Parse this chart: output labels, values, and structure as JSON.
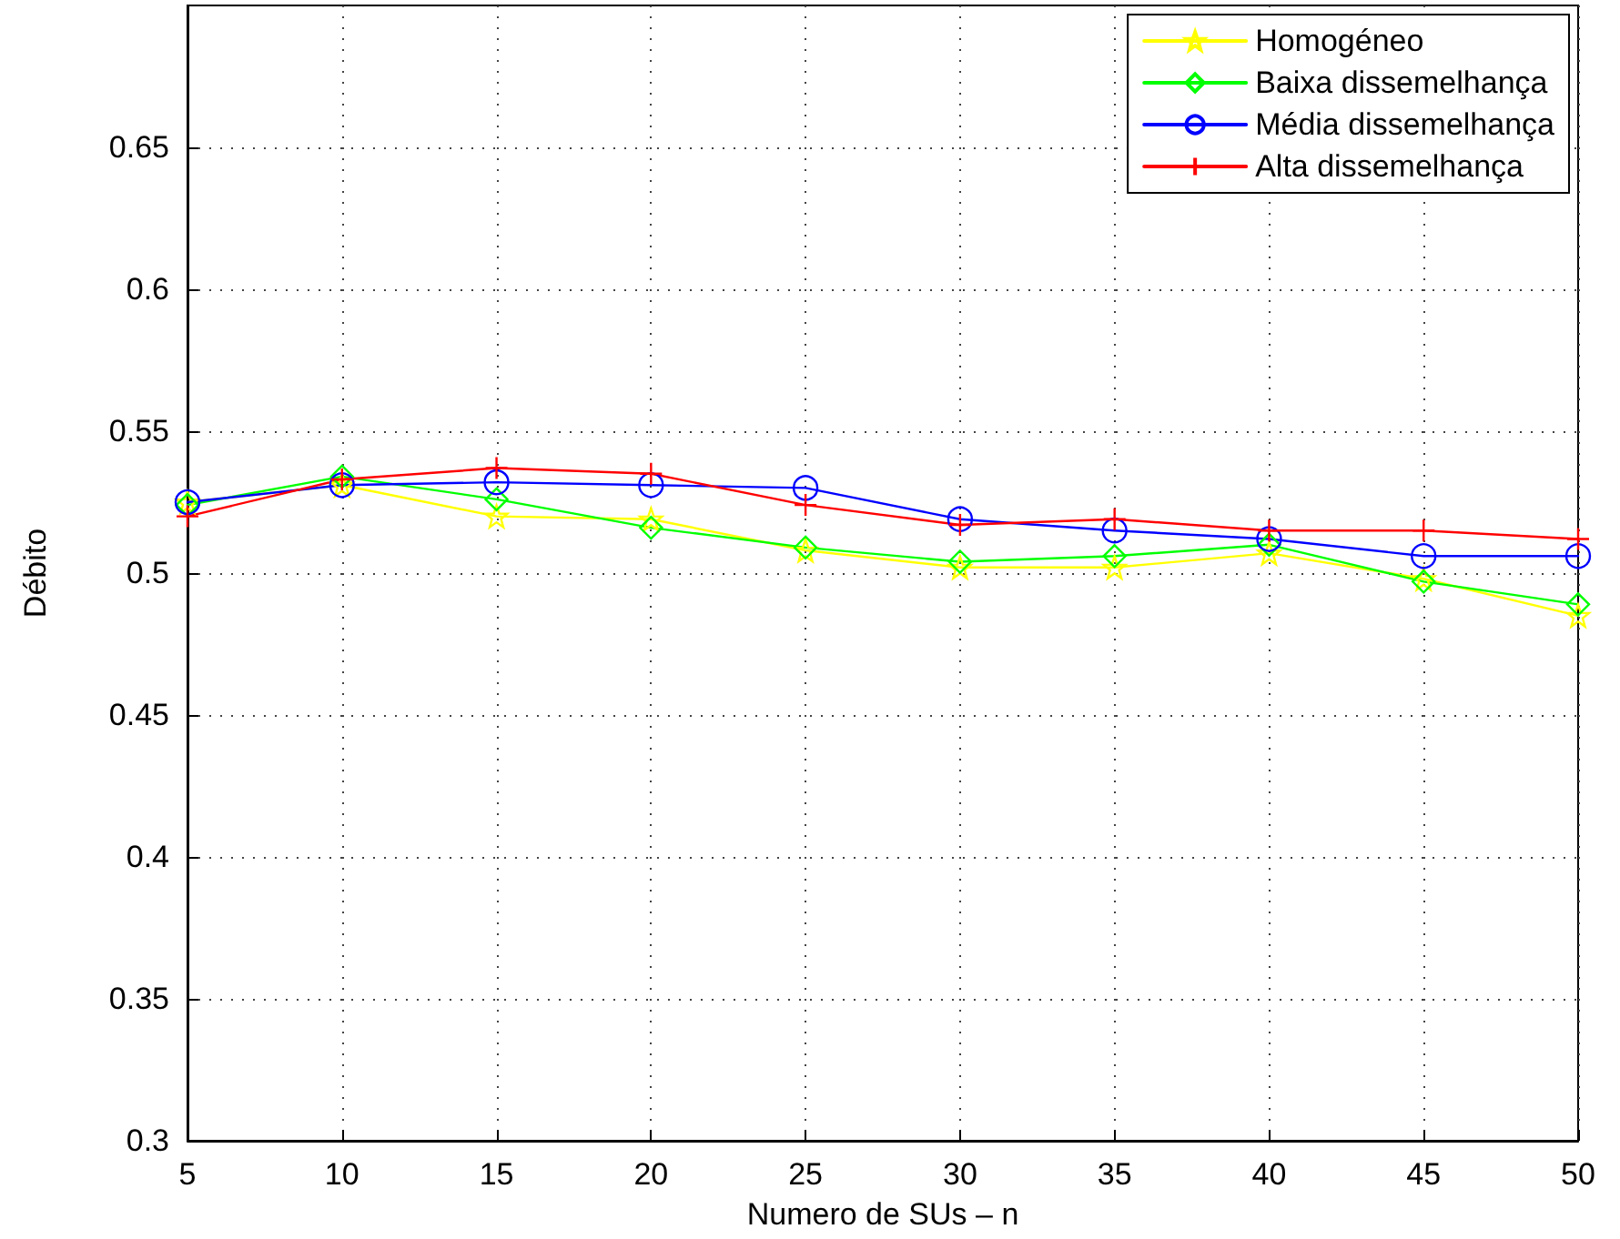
{
  "chart_data": {
    "type": "line",
    "xlabel": "Numero de SUs – n",
    "ylabel": "Débito",
    "x": [
      5,
      10,
      15,
      20,
      25,
      30,
      35,
      40,
      45,
      50
    ],
    "xlim": [
      5,
      50
    ],
    "xticks": [
      5,
      10,
      15,
      20,
      25,
      30,
      35,
      40,
      45,
      50
    ],
    "ylim": [
      0.3,
      0.7
    ],
    "yticks": [
      0.3,
      0.35,
      0.4,
      0.45,
      0.5,
      0.55,
      0.6,
      0.65
    ],
    "grid": true,
    "legend": "top right",
    "line_style": "solid",
    "series": [
      {
        "name": "Homogéneo",
        "color": "#ffff00",
        "marker": "star",
        "values": [
          0.525,
          0.531,
          0.52,
          0.519,
          0.508,
          0.502,
          0.502,
          0.507,
          0.498,
          0.485
        ]
      },
      {
        "name": "Baixa dissemelhança",
        "color": "#00ff00",
        "marker": "diamond",
        "values": [
          0.524,
          0.534,
          0.526,
          0.516,
          0.509,
          0.504,
          0.506,
          0.51,
          0.497,
          0.489
        ]
      },
      {
        "name": "Média dissemelhança",
        "color": "#0000ff",
        "marker": "circle",
        "values": [
          0.525,
          0.531,
          0.532,
          0.531,
          0.53,
          0.519,
          0.515,
          0.512,
          0.506,
          0.506
        ]
      },
      {
        "name": "Alta dissemelhança",
        "color": "#ff0000",
        "marker": "cross",
        "values": [
          0.52,
          0.533,
          0.537,
          0.535,
          0.524,
          0.517,
          0.519,
          0.515,
          0.515,
          0.512
        ]
      }
    ]
  }
}
